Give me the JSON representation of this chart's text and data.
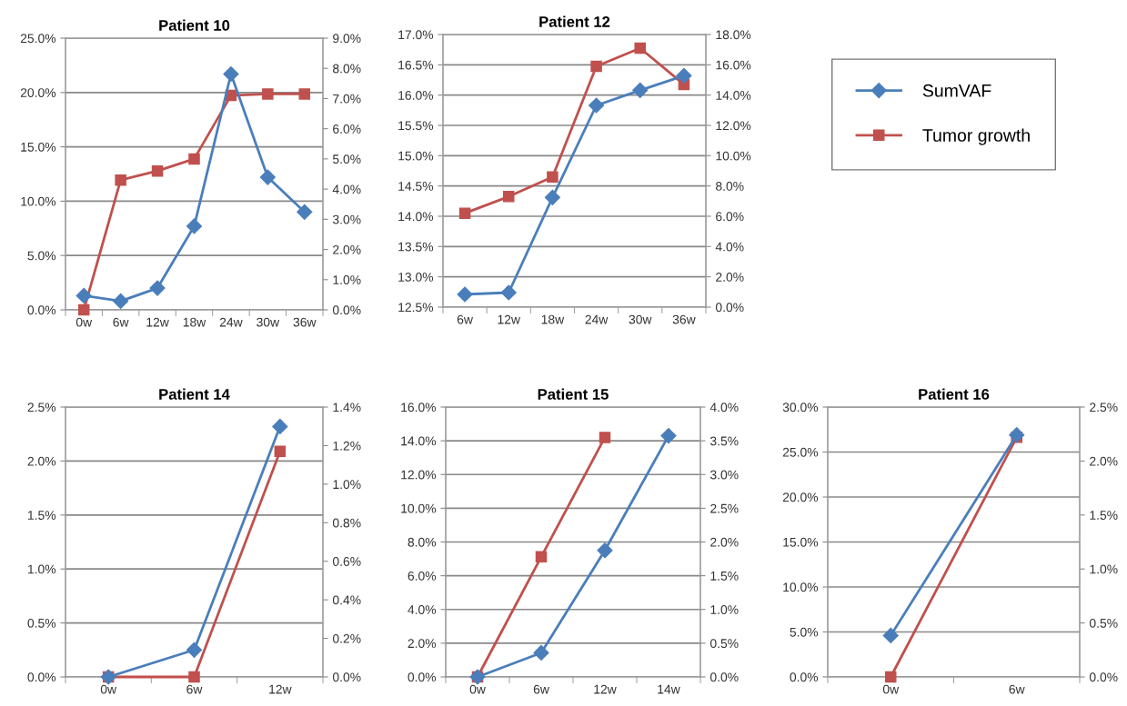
{
  "chart_data": [
    {
      "type": "line",
      "title": "Patient 10",
      "categories": [
        "0w",
        "6w",
        "12w",
        "18w",
        "24w",
        "30w",
        "36w"
      ],
      "grid": "y",
      "legend": "right",
      "ylim": [
        0,
        25
      ],
      "yticks": [
        {
          "value": 0,
          "label": "0.0%"
        },
        {
          "value": 5,
          "label": "5.0%"
        },
        {
          "value": 10,
          "label": "10.0%"
        },
        {
          "value": 15,
          "label": "15.0%"
        },
        {
          "value": 20,
          "label": "20.0%"
        },
        {
          "value": 25,
          "label": "25.0%"
        }
      ],
      "y2lim": [
        0,
        9
      ],
      "y2ticks": [
        {
          "value": 0,
          "label": "0.0%"
        },
        {
          "value": 1,
          "label": "1.0%"
        },
        {
          "value": 2,
          "label": "2.0%"
        },
        {
          "value": 3,
          "label": "3.0%"
        },
        {
          "value": 4,
          "label": "4.0%"
        },
        {
          "value": 5,
          "label": "5.0%"
        },
        {
          "value": 6,
          "label": "6.0%"
        },
        {
          "value": 7,
          "label": "7.0%"
        },
        {
          "value": 8,
          "label": "8.0%"
        },
        {
          "value": 9,
          "label": "9.0%"
        }
      ],
      "series": [
        {
          "name": "SumVAF",
          "color": "#4a7ebb",
          "marker": "diamond",
          "values": [
            1.3,
            0.8,
            2.0,
            7.7,
            21.7,
            12.2,
            9.0
          ]
        },
        {
          "name": "Tumor growth",
          "color": "#c0504d",
          "marker": "square",
          "axis": "y2",
          "values": [
            0.0,
            4.3,
            4.6,
            5.0,
            7.1,
            7.15,
            7.15
          ]
        }
      ]
    },
    {
      "type": "line",
      "title": "Patient 12",
      "categories": [
        "6w",
        "12w",
        "18w",
        "24w",
        "30w",
        "36w"
      ],
      "grid": "y",
      "ylim": [
        12.5,
        17
      ],
      "yticks": [
        {
          "value": 12.5,
          "label": "12.5%"
        },
        {
          "value": 13,
          "label": "13.0%"
        },
        {
          "value": 13.5,
          "label": "13.5%"
        },
        {
          "value": 14,
          "label": "14.0%"
        },
        {
          "value": 14.5,
          "label": "14.5%"
        },
        {
          "value": 15,
          "label": "15.0%"
        },
        {
          "value": 15.5,
          "label": "15.5%"
        },
        {
          "value": 16,
          "label": "16.0%"
        },
        {
          "value": 16.5,
          "label": "16.5%"
        },
        {
          "value": 17,
          "label": "17.0%"
        }
      ],
      "y2lim": [
        0,
        18
      ],
      "y2ticks": [
        {
          "value": 0,
          "label": "0.0%"
        },
        {
          "value": 2,
          "label": "2.0%"
        },
        {
          "value": 4,
          "label": "4.0%"
        },
        {
          "value": 6,
          "label": "6.0%"
        },
        {
          "value": 8,
          "label": "8.0%"
        },
        {
          "value": 10,
          "label": "10.0%"
        },
        {
          "value": 12,
          "label": "12.0%"
        },
        {
          "value": 14,
          "label": "14.0%"
        },
        {
          "value": 16,
          "label": "16.0%"
        },
        {
          "value": 18,
          "label": "18.0%"
        }
      ],
      "series": [
        {
          "color": "#4a7ebb",
          "marker": "diamond",
          "values": [
            12.71,
            12.74,
            14.31,
            15.83,
            16.08,
            16.32
          ]
        },
        {
          "color": "#c0504d",
          "marker": "square",
          "axis": "y2",
          "values": [
            6.2,
            7.3,
            8.6,
            15.9,
            17.1,
            14.7
          ]
        }
      ]
    },
    {
      "type": "line",
      "title": "Patient 14",
      "categories": [
        "0w",
        "6w",
        "12w"
      ],
      "grid": "y",
      "ylim": [
        0,
        2.5
      ],
      "yticks": [
        {
          "value": 0,
          "label": "0.0%"
        },
        {
          "value": 0.5,
          "label": "0.5%"
        },
        {
          "value": 1,
          "label": "1.0%"
        },
        {
          "value": 1.5,
          "label": "1.5%"
        },
        {
          "value": 2,
          "label": "2.0%"
        },
        {
          "value": 2.5,
          "label": "2.5%"
        }
      ],
      "y2lim": [
        0,
        1.4
      ],
      "y2ticks": [
        {
          "value": 0,
          "label": "0.0%"
        },
        {
          "value": 0.2,
          "label": "0.2%"
        },
        {
          "value": 0.4,
          "label": "0.4%"
        },
        {
          "value": 0.6,
          "label": "0.6%"
        },
        {
          "value": 0.8,
          "label": "0.8%"
        },
        {
          "value": 1.0,
          "label": "1.0%"
        },
        {
          "value": 1.2,
          "label": "1.2%"
        },
        {
          "value": 1.4,
          "label": "1.4%"
        }
      ],
      "series": [
        {
          "color": "#4a7ebb",
          "marker": "diamond",
          "values": [
            0.0,
            0.25,
            2.32
          ]
        },
        {
          "color": "#c0504d",
          "marker": "square",
          "axis": "y2",
          "values": [
            0.0,
            0.0,
            1.17
          ]
        }
      ]
    },
    {
      "type": "line",
      "title": "Patient 15",
      "categories": [
        "0w",
        "6w",
        "12w",
        "14w"
      ],
      "grid": "y",
      "ylim": [
        0,
        16
      ],
      "yticks": [
        {
          "value": 0,
          "label": "0.0%"
        },
        {
          "value": 2,
          "label": "2.0%"
        },
        {
          "value": 4,
          "label": "4.0%"
        },
        {
          "value": 6,
          "label": "6.0%"
        },
        {
          "value": 8,
          "label": "8.0%"
        },
        {
          "value": 10,
          "label": "10.0%"
        },
        {
          "value": 12,
          "label": "12.0%"
        },
        {
          "value": 14,
          "label": "14.0%"
        },
        {
          "value": 16,
          "label": "16.0%"
        }
      ],
      "y2lim": [
        0,
        4
      ],
      "y2ticks": [
        {
          "value": 0,
          "label": "0.0%"
        },
        {
          "value": 0.5,
          "label": "0.5%"
        },
        {
          "value": 1,
          "label": "1.0%"
        },
        {
          "value": 1.5,
          "label": "1.5%"
        },
        {
          "value": 2,
          "label": "2.0%"
        },
        {
          "value": 2.5,
          "label": "2.5%"
        },
        {
          "value": 3,
          "label": "3.0%"
        },
        {
          "value": 3.5,
          "label": "3.5%"
        },
        {
          "value": 4,
          "label": "4.0%"
        }
      ],
      "series": [
        {
          "color": "#4a7ebb",
          "marker": "diamond",
          "values": [
            0.0,
            1.43,
            7.5,
            14.3
          ]
        },
        {
          "color": "#c0504d",
          "marker": "square",
          "axis": "y2",
          "values": [
            0.0,
            1.78,
            3.55,
            null
          ]
        }
      ]
    },
    {
      "type": "line",
      "title": "Patient 16",
      "categories": [
        "0w",
        "6w"
      ],
      "grid": "y",
      "ylim": [
        0,
        30
      ],
      "yticks": [
        {
          "value": 0,
          "label": "0.0%"
        },
        {
          "value": 5,
          "label": "5.0%"
        },
        {
          "value": 10,
          "label": "10.0%"
        },
        {
          "value": 15,
          "label": "15.0%"
        },
        {
          "value": 20,
          "label": "20.0%"
        },
        {
          "value": 25,
          "label": "25.0%"
        },
        {
          "value": 30,
          "label": "30.0%"
        }
      ],
      "y2lim": [
        0,
        2.5
      ],
      "y2ticks": [
        {
          "value": 0,
          "label": "0.0%"
        },
        {
          "value": 0.5,
          "label": "0.5%"
        },
        {
          "value": 1,
          "label": "1.0%"
        },
        {
          "value": 1.5,
          "label": "1.5%"
        },
        {
          "value": 2,
          "label": "2.0%"
        },
        {
          "value": 2.5,
          "label": "2.5%"
        }
      ],
      "series": [
        {
          "color": "#4a7ebb",
          "marker": "diamond",
          "values": [
            4.6,
            26.9
          ]
        },
        {
          "color": "#c0504d",
          "marker": "square",
          "axis": "y2",
          "values": [
            0.0,
            2.22
          ]
        }
      ]
    }
  ]
}
